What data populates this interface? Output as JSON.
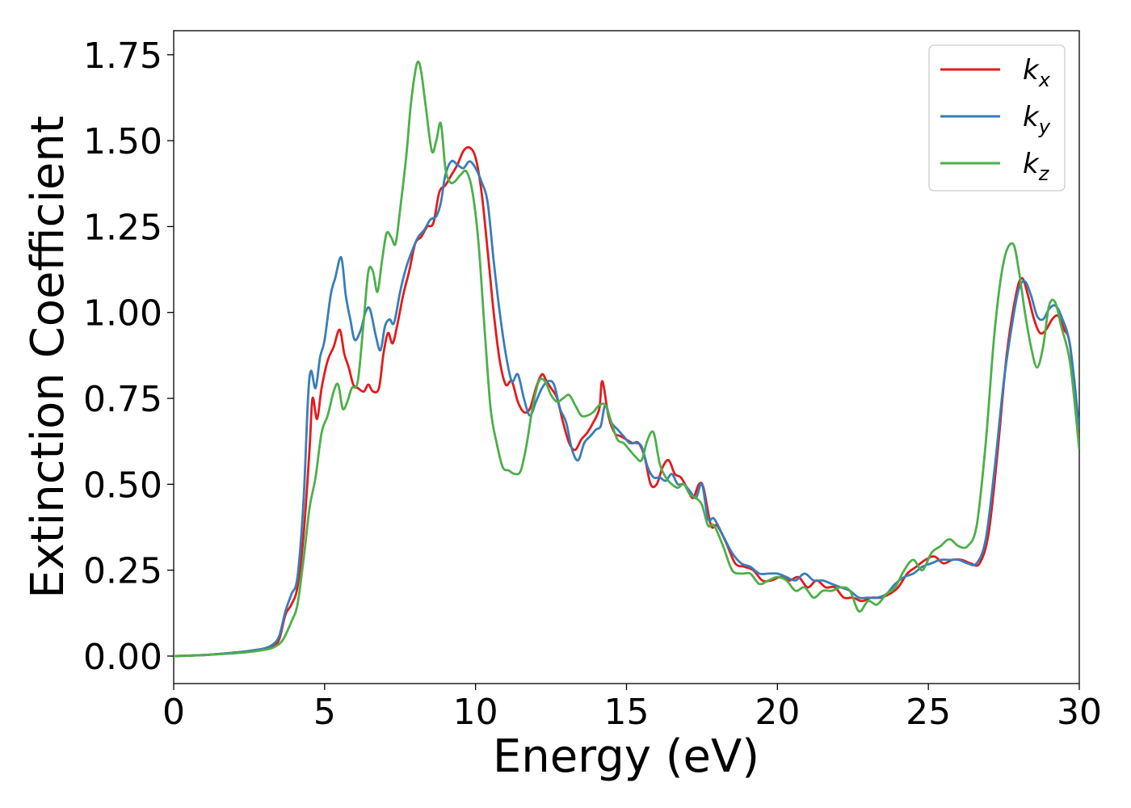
{
  "chart_data": {
    "type": "line",
    "title": "",
    "xlabel": "Energy (eV)",
    "ylabel": "Extinction Coefficient",
    "xlim": [
      0,
      30
    ],
    "ylim": [
      -0.08,
      1.82
    ],
    "xticks": [
      0,
      5,
      10,
      15,
      20,
      25,
      30
    ],
    "xtick_labels": [
      "0",
      "5",
      "10",
      "15",
      "20",
      "25",
      "30"
    ],
    "yticks": [
      0,
      0.25,
      0.5,
      0.75,
      1.0,
      1.25,
      1.5,
      1.75
    ],
    "ytick_labels": [
      "0.00",
      "0.25",
      "0.50",
      "0.75",
      "1.00",
      "1.25",
      "1.50",
      "1.75"
    ],
    "grid": false,
    "legend_position": "top-right",
    "series": [
      {
        "name": "kx",
        "label_base": "k",
        "label_sub": "x",
        "color": "#e41a1c",
        "x": [
          0,
          1,
          2,
          2.5,
          3,
          3.3,
          3.5,
          3.7,
          3.9,
          4.1,
          4.3,
          4.5,
          4.6,
          4.75,
          4.9,
          5.1,
          5.3,
          5.5,
          5.65,
          5.8,
          5.95,
          6.1,
          6.3,
          6.45,
          6.6,
          6.8,
          6.95,
          7.1,
          7.25,
          7.4,
          7.6,
          7.8,
          8.0,
          8.2,
          8.4,
          8.6,
          8.8,
          9.0,
          9.2,
          9.4,
          9.6,
          9.8,
          10.0,
          10.2,
          10.4,
          10.6,
          10.8,
          11.0,
          11.2,
          11.4,
          11.6,
          11.8,
          12.0,
          12.2,
          12.35,
          12.5,
          12.7,
          12.9,
          13.1,
          13.3,
          13.5,
          13.7,
          13.9,
          14.1,
          14.2,
          14.4,
          14.6,
          14.8,
          15.0,
          15.2,
          15.4,
          15.6,
          15.8,
          16.0,
          16.2,
          16.4,
          16.6,
          16.8,
          17.0,
          17.2,
          17.4,
          17.55,
          17.8,
          18.0,
          18.3,
          18.6,
          18.9,
          19.2,
          19.5,
          19.8,
          20.1,
          20.4,
          20.7,
          21.0,
          21.3,
          21.6,
          21.9,
          22.2,
          22.5,
          22.8,
          23.1,
          23.4,
          23.7,
          24.0,
          24.3,
          24.6,
          24.9,
          25.2,
          25.5,
          25.8,
          26.1,
          26.4,
          26.7,
          27.0,
          27.3,
          27.6,
          27.9,
          28.1,
          28.3,
          28.5,
          28.7,
          28.9,
          29.1,
          29.3,
          29.5,
          29.7,
          30.0
        ],
        "values": [
          0.0,
          0.003,
          0.01,
          0.015,
          0.022,
          0.03,
          0.05,
          0.12,
          0.15,
          0.2,
          0.35,
          0.6,
          0.75,
          0.69,
          0.78,
          0.86,
          0.9,
          0.95,
          0.88,
          0.84,
          0.79,
          0.78,
          0.77,
          0.79,
          0.77,
          0.78,
          0.88,
          0.94,
          0.91,
          0.96,
          1.05,
          1.12,
          1.2,
          1.22,
          1.25,
          1.26,
          1.35,
          1.37,
          1.4,
          1.43,
          1.47,
          1.48,
          1.45,
          1.35,
          1.18,
          1.0,
          0.86,
          0.79,
          0.8,
          0.74,
          0.71,
          0.72,
          0.78,
          0.82,
          0.8,
          0.78,
          0.75,
          0.68,
          0.62,
          0.6,
          0.63,
          0.65,
          0.68,
          0.72,
          0.8,
          0.7,
          0.65,
          0.64,
          0.63,
          0.62,
          0.62,
          0.58,
          0.5,
          0.5,
          0.55,
          0.57,
          0.53,
          0.52,
          0.49,
          0.46,
          0.5,
          0.49,
          0.38,
          0.38,
          0.33,
          0.27,
          0.26,
          0.25,
          0.22,
          0.22,
          0.23,
          0.22,
          0.23,
          0.2,
          0.22,
          0.2,
          0.2,
          0.17,
          0.17,
          0.16,
          0.17,
          0.17,
          0.18,
          0.2,
          0.24,
          0.26,
          0.28,
          0.29,
          0.27,
          0.28,
          0.28,
          0.27,
          0.27,
          0.36,
          0.6,
          0.88,
          1.05,
          1.1,
          1.05,
          0.98,
          0.94,
          0.95,
          0.98,
          0.99,
          0.95,
          0.9,
          0.64
        ]
      },
      {
        "name": "ky",
        "label_base": "k",
        "label_sub": "y",
        "color": "#377eb8",
        "x": [
          0,
          1,
          2,
          2.5,
          3,
          3.3,
          3.5,
          3.7,
          3.9,
          4.1,
          4.3,
          4.45,
          4.55,
          4.7,
          4.85,
          5.0,
          5.2,
          5.35,
          5.55,
          5.7,
          5.85,
          6.0,
          6.2,
          6.35,
          6.5,
          6.7,
          6.85,
          7.0,
          7.15,
          7.3,
          7.5,
          7.7,
          7.9,
          8.1,
          8.3,
          8.5,
          8.7,
          8.85,
          9.0,
          9.2,
          9.4,
          9.6,
          9.8,
          10.0,
          10.2,
          10.4,
          10.6,
          10.8,
          11.0,
          11.2,
          11.4,
          11.6,
          11.8,
          12.0,
          12.2,
          12.4,
          12.6,
          12.8,
          13.0,
          13.2,
          13.4,
          13.6,
          13.8,
          14.0,
          14.15,
          14.3,
          14.5,
          14.7,
          14.9,
          15.1,
          15.3,
          15.5,
          15.7,
          15.9,
          16.1,
          16.3,
          16.5,
          16.7,
          16.9,
          17.1,
          17.3,
          17.5,
          17.7,
          17.9,
          18.2,
          18.5,
          18.8,
          19.1,
          19.4,
          19.7,
          20.0,
          20.3,
          20.6,
          20.9,
          21.2,
          21.5,
          21.8,
          22.1,
          22.4,
          22.7,
          23.0,
          23.3,
          23.6,
          23.9,
          24.2,
          24.5,
          24.8,
          25.1,
          25.4,
          25.7,
          26.0,
          26.3,
          26.6,
          26.9,
          27.2,
          27.5,
          27.8,
          28.0,
          28.2,
          28.4,
          28.6,
          28.8,
          29.0,
          29.2,
          29.4,
          29.7,
          30.0
        ],
        "values": [
          0.0,
          0.003,
          0.01,
          0.015,
          0.022,
          0.035,
          0.06,
          0.13,
          0.18,
          0.23,
          0.45,
          0.75,
          0.83,
          0.78,
          0.87,
          0.92,
          1.05,
          1.1,
          1.16,
          1.05,
          0.98,
          0.92,
          0.95,
          1.0,
          1.01,
          0.93,
          0.89,
          0.96,
          0.98,
          0.97,
          1.06,
          1.13,
          1.18,
          1.22,
          1.24,
          1.27,
          1.28,
          1.32,
          1.4,
          1.44,
          1.43,
          1.42,
          1.44,
          1.42,
          1.38,
          1.32,
          1.15,
          1.0,
          0.88,
          0.8,
          0.82,
          0.75,
          0.7,
          0.74,
          0.78,
          0.8,
          0.79,
          0.72,
          0.68,
          0.6,
          0.57,
          0.62,
          0.64,
          0.66,
          0.67,
          0.73,
          0.68,
          0.66,
          0.64,
          0.62,
          0.62,
          0.61,
          0.55,
          0.52,
          0.52,
          0.51,
          0.53,
          0.5,
          0.5,
          0.48,
          0.46,
          0.5,
          0.4,
          0.4,
          0.35,
          0.3,
          0.27,
          0.26,
          0.24,
          0.24,
          0.24,
          0.23,
          0.22,
          0.24,
          0.22,
          0.22,
          0.21,
          0.2,
          0.19,
          0.17,
          0.17,
          0.17,
          0.18,
          0.21,
          0.23,
          0.24,
          0.26,
          0.27,
          0.28,
          0.28,
          0.28,
          0.27,
          0.27,
          0.34,
          0.55,
          0.8,
          0.98,
          1.07,
          1.09,
          1.05,
          0.99,
          0.98,
          1.01,
          1.02,
          0.99,
          0.9,
          0.66
        ]
      },
      {
        "name": "kz",
        "label_base": "k",
        "label_sub": "z",
        "color": "#4daf4a",
        "x": [
          0,
          1,
          2,
          2.5,
          3,
          3.3,
          3.6,
          3.9,
          4.1,
          4.3,
          4.5,
          4.7,
          4.9,
          5.1,
          5.3,
          5.45,
          5.6,
          5.75,
          5.9,
          6.1,
          6.3,
          6.45,
          6.6,
          6.75,
          6.9,
          7.05,
          7.2,
          7.35,
          7.5,
          7.7,
          7.85,
          8.0,
          8.1,
          8.2,
          8.35,
          8.55,
          8.7,
          8.85,
          9.0,
          9.15,
          9.3,
          9.5,
          9.7,
          9.9,
          10.1,
          10.3,
          10.5,
          10.7,
          10.9,
          11.1,
          11.3,
          11.5,
          11.7,
          11.9,
          12.1,
          12.3,
          12.5,
          12.7,
          12.9,
          13.1,
          13.3,
          13.5,
          13.7,
          13.9,
          14.1,
          14.3,
          14.5,
          14.7,
          14.9,
          15.1,
          15.3,
          15.5,
          15.7,
          15.9,
          16.1,
          16.3,
          16.5,
          16.7,
          16.9,
          17.1,
          17.3,
          17.5,
          17.7,
          17.9,
          18.2,
          18.5,
          18.8,
          19.1,
          19.4,
          19.7,
          20.0,
          20.3,
          20.6,
          20.9,
          21.2,
          21.5,
          21.8,
          22.1,
          22.4,
          22.7,
          23.0,
          23.3,
          23.6,
          23.9,
          24.2,
          24.5,
          24.8,
          25.1,
          25.4,
          25.7,
          26.0,
          26.3,
          26.6,
          26.9,
          27.2,
          27.5,
          27.8,
          28.0,
          28.2,
          28.4,
          28.6,
          28.8,
          29.0,
          29.2,
          29.4,
          29.7,
          30.0
        ],
        "values": [
          0.0,
          0.003,
          0.008,
          0.012,
          0.018,
          0.025,
          0.045,
          0.1,
          0.15,
          0.28,
          0.43,
          0.52,
          0.65,
          0.7,
          0.77,
          0.79,
          0.72,
          0.74,
          0.78,
          0.8,
          0.98,
          1.12,
          1.12,
          1.06,
          1.15,
          1.23,
          1.22,
          1.2,
          1.3,
          1.45,
          1.6,
          1.7,
          1.73,
          1.7,
          1.6,
          1.47,
          1.5,
          1.55,
          1.42,
          1.38,
          1.38,
          1.4,
          1.41,
          1.35,
          1.2,
          0.95,
          0.72,
          0.62,
          0.55,
          0.54,
          0.53,
          0.54,
          0.62,
          0.73,
          0.8,
          0.8,
          0.76,
          0.74,
          0.75,
          0.76,
          0.73,
          0.7,
          0.7,
          0.71,
          0.73,
          0.73,
          0.68,
          0.63,
          0.62,
          0.6,
          0.58,
          0.57,
          0.63,
          0.65,
          0.56,
          0.52,
          0.5,
          0.49,
          0.5,
          0.47,
          0.46,
          0.44,
          0.38,
          0.38,
          0.32,
          0.25,
          0.24,
          0.24,
          0.21,
          0.22,
          0.23,
          0.22,
          0.19,
          0.2,
          0.17,
          0.19,
          0.19,
          0.2,
          0.19,
          0.13,
          0.16,
          0.15,
          0.18,
          0.2,
          0.25,
          0.28,
          0.25,
          0.3,
          0.32,
          0.34,
          0.32,
          0.32,
          0.38,
          0.62,
          0.95,
          1.15,
          1.2,
          1.12,
          1.0,
          0.9,
          0.84,
          0.9,
          1.02,
          1.03,
          0.96,
          0.85,
          0.6
        ]
      }
    ]
  }
}
